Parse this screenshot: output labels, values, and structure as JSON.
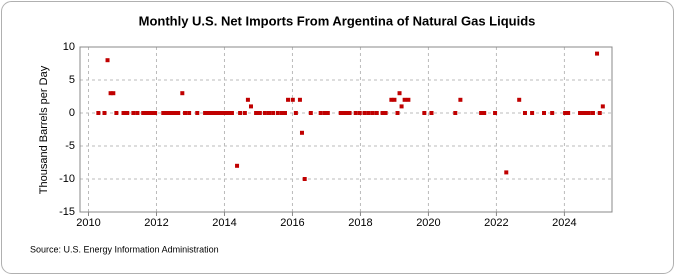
{
  "chart_data": {
    "type": "scatter",
    "title": "Monthly U.S. Net Imports From Argentina of Natural Gas Liquids",
    "y_label": "Thousand Barrels per Day",
    "source": "Source: U.S. Energy Information Administration",
    "color": "#c00000",
    "grid": true,
    "xlim": [
      2009.75,
      2025.4
    ],
    "xticks": [
      2010,
      2012,
      2014,
      2016,
      2018,
      2020,
      2022,
      2024
    ],
    "ylim": [
      -15,
      10
    ],
    "yticks": [
      -15,
      -10,
      -5,
      0,
      5,
      10
    ],
    "x": [
      2010.29,
      2010.47,
      2010.56,
      2010.65,
      2010.73,
      2010.82,
      2011.03,
      2011.14,
      2011.32,
      2011.44,
      2011.61,
      2011.7,
      2011.79,
      2011.88,
      2011.96,
      2012.2,
      2012.29,
      2012.38,
      2012.46,
      2012.55,
      2012.64,
      2012.76,
      2012.84,
      2012.96,
      2013.2,
      2013.43,
      2013.52,
      2013.61,
      2013.7,
      2013.78,
      2013.87,
      2013.96,
      2014.05,
      2014.13,
      2014.22,
      2014.37,
      2014.46,
      2014.6,
      2014.69,
      2014.78,
      2014.93,
      2015.04,
      2015.19,
      2015.31,
      2015.43,
      2015.57,
      2015.69,
      2015.78,
      2015.87,
      2016.01,
      2016.1,
      2016.22,
      2016.28,
      2016.36,
      2016.54,
      2016.83,
      2016.95,
      2017.04,
      2017.42,
      2017.51,
      2017.6,
      2017.68,
      2017.86,
      2017.98,
      2018.12,
      2018.24,
      2018.36,
      2018.48,
      2018.65,
      2018.74,
      2018.91,
      2019.0,
      2019.09,
      2019.15,
      2019.21,
      2019.3,
      2019.41,
      2019.88,
      2020.09,
      2020.79,
      2020.94,
      2021.55,
      2021.64,
      2021.96,
      2022.29,
      2022.67,
      2022.84,
      2023.05,
      2023.4,
      2023.64,
      2024.02,
      2024.11,
      2024.46,
      2024.55,
      2024.63,
      2024.72,
      2024.84,
      2024.96,
      2025.04,
      2025.13
    ],
    "values": [
      0,
      0,
      8,
      3,
      3,
      0,
      0,
      0,
      0,
      0,
      0,
      0,
      0,
      0,
      0,
      0,
      0,
      0,
      0,
      0,
      0,
      3,
      0,
      0,
      0,
      0,
      0,
      0,
      0,
      0,
      0,
      0,
      0,
      0,
      0,
      -8,
      0,
      0,
      2,
      1,
      0,
      0,
      0,
      0,
      0,
      0,
      0,
      0,
      2,
      2,
      0,
      2,
      -3,
      -10,
      0,
      0,
      0,
      0,
      0,
      0,
      0,
      0,
      0,
      0,
      0,
      0,
      0,
      0,
      0,
      0,
      2,
      2,
      0,
      3,
      1,
      2,
      2,
      0,
      0,
      0,
      2,
      0,
      0,
      0,
      -9,
      2,
      0,
      0,
      0,
      0,
      0,
      0,
      0,
      0,
      0,
      0,
      0,
      9,
      0,
      1
    ]
  }
}
